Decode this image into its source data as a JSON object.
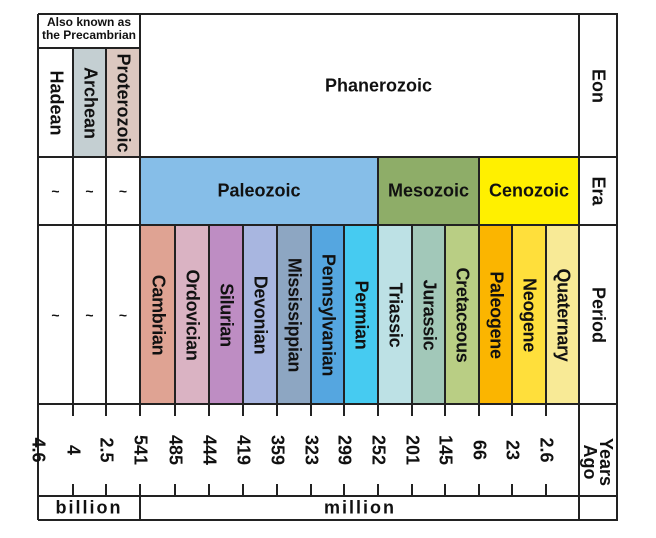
{
  "title": "",
  "precambrian_note": [
    "Also known as",
    "the Precambrian"
  ],
  "row_labels": {
    "eon": "Eon",
    "era": "Era",
    "period": "Period",
    "years_ago": [
      "Years",
      "Ago"
    ]
  },
  "eons": [
    {
      "name": "Hadean",
      "color": "#ffffff"
    },
    {
      "name": "Archean",
      "color": "#c4cfd2"
    },
    {
      "name": "Proterozoic",
      "color": "#dcc8c0"
    },
    {
      "name": "Phanerozoic",
      "color": "#ffffff"
    }
  ],
  "precambrian_placeholder": "~",
  "eras": [
    {
      "name": "Paleozoic",
      "color": "#86bee8"
    },
    {
      "name": "Mesozoic",
      "color": "#8ead68"
    },
    {
      "name": "Cenozoic",
      "color": "#fff000"
    }
  ],
  "periods": [
    {
      "name": "Cambrian",
      "color": "#dfa393"
    },
    {
      "name": "Ordovician",
      "color": "#dab3c3"
    },
    {
      "name": "Silurian",
      "color": "#be8dc3"
    },
    {
      "name": "Devonian",
      "color": "#a8b6e0"
    },
    {
      "name": "Mississippian",
      "color": "#8da6c2"
    },
    {
      "name": "Pennsylvanian",
      "color": "#55a6e0"
    },
    {
      "name": "Permian",
      "color": "#46cbf1"
    },
    {
      "name": "Triassic",
      "color": "#bde1e5"
    },
    {
      "name": "Jurassic",
      "color": "#a2c8b9"
    },
    {
      "name": "Cretaceous",
      "color": "#b9ce84"
    },
    {
      "name": "Paleogene",
      "color": "#fbb500"
    },
    {
      "name": "Neogene",
      "color": "#ffdf3b"
    },
    {
      "name": "Quaternary",
      "color": "#f8ea96"
    }
  ],
  "chart_data": {
    "type": "table",
    "billion_ages": [
      "4.6",
      "4",
      "2.5"
    ],
    "million_ages": [
      "541",
      "485",
      "444",
      "419",
      "359",
      "323",
      "299",
      "252",
      "201",
      "145",
      "66",
      "23",
      "2.6"
    ],
    "units": {
      "billion": "billion",
      "million": "million"
    }
  }
}
